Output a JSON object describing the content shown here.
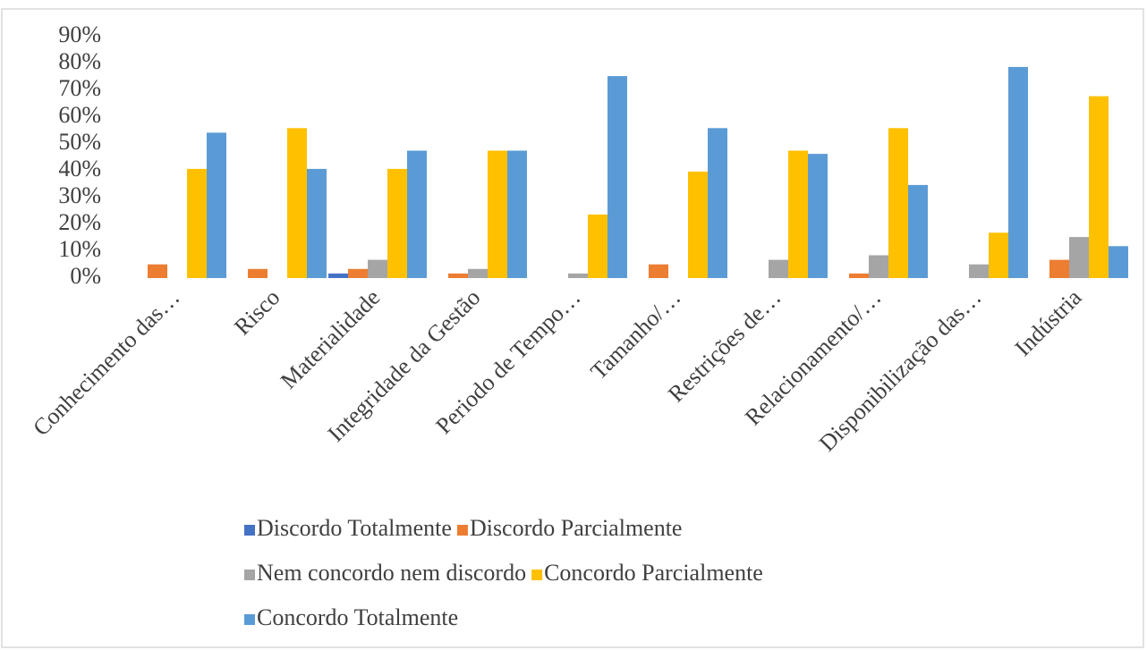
{
  "chart_data": {
    "type": "bar",
    "categories": [
      "Conhecimento das…",
      "Risco",
      "Materialidade",
      "Integridade da Gestão",
      "Periodo de Tempo…",
      "Tamanho/…",
      "Restrições de…",
      "Relacionamento/…",
      "Disponibilização das…",
      "Indústria"
    ],
    "series": [
      {
        "name": "Discordo Totalmente",
        "color": "#4472c4",
        "values": [
          0,
          0,
          1.7,
          0,
          0,
          0,
          0,
          0,
          0,
          0
        ]
      },
      {
        "name": "Discordo Parcialmente",
        "color": "#ed7d31",
        "values": [
          5.1,
          3.4,
          3.4,
          1.7,
          0,
          5.1,
          0,
          1.7,
          0,
          6.8
        ]
      },
      {
        "name": "Nem concordo nem discordo",
        "color": "#a5a5a5",
        "values": [
          0,
          0,
          6.8,
          3.4,
          1.7,
          0,
          6.8,
          8.5,
          5.1,
          15.3
        ]
      },
      {
        "name": "Concordo Parcialmente",
        "color": "#ffc000",
        "values": [
          40.7,
          55.9,
          40.7,
          47.5,
          23.7,
          39.7,
          47.5,
          55.9,
          16.9,
          67.8
        ]
      },
      {
        "name": "Concordo Totalmente",
        "color": "#5b9bd5",
        "values": [
          54.2,
          40.7,
          47.5,
          47.5,
          75.3,
          55.9,
          46.3,
          34.7,
          78.7,
          11.9
        ]
      }
    ],
    "ylim": [
      0,
      90
    ],
    "yticks": [
      {
        "value": 0,
        "label": "0%"
      },
      {
        "value": 10,
        "label": "10%"
      },
      {
        "value": 20,
        "label": "20%"
      },
      {
        "value": 30,
        "label": "30%"
      },
      {
        "value": 40,
        "label": "40%"
      },
      {
        "value": 50,
        "label": "50%"
      },
      {
        "value": 60,
        "label": "60%"
      },
      {
        "value": 70,
        "label": "70%"
      },
      {
        "value": 80,
        "label": "80%"
      },
      {
        "value": 90,
        "label": "90%"
      }
    ],
    "grid": false,
    "legend": "bottom"
  }
}
